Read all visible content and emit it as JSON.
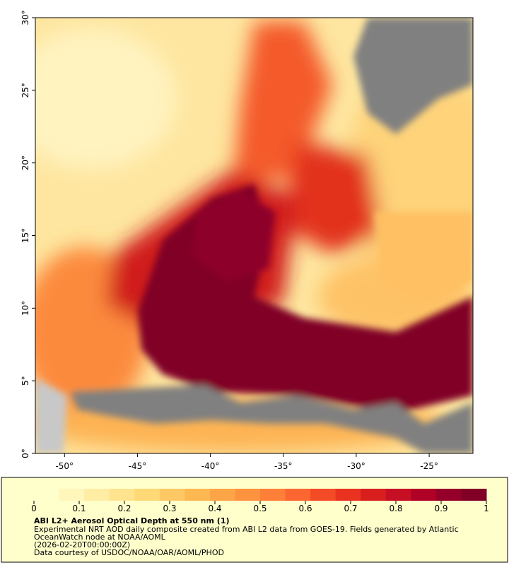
{
  "map": {
    "xlim": [
      -52,
      -22
    ],
    "ylim": [
      0,
      30
    ],
    "xticks": [
      {
        "value": -50,
        "label": "-50°"
      },
      {
        "value": -45,
        "label": "-45°"
      },
      {
        "value": -40,
        "label": "-40°"
      },
      {
        "value": -35,
        "label": "-35°"
      },
      {
        "value": -30,
        "label": "-30°"
      },
      {
        "value": -25,
        "label": "-25°"
      }
    ],
    "yticks": [
      {
        "value": 0,
        "label": "0°"
      },
      {
        "value": 5,
        "label": "5°"
      },
      {
        "value": 10,
        "label": "10°"
      },
      {
        "value": 15,
        "label": "15°"
      },
      {
        "value": 20,
        "label": "20°"
      },
      {
        "value": 25,
        "label": "25°"
      },
      {
        "value": 30,
        "label": "30°"
      }
    ]
  },
  "colorbar": {
    "lim": [
      0,
      1
    ],
    "ticks": [
      0,
      0.1,
      0.2,
      0.3,
      0.4,
      0.5,
      0.6,
      0.7,
      0.8,
      0.9,
      1
    ],
    "colors": [
      "#ffffcc",
      "#fff6bb",
      "#ffeda4",
      "#ffe38f",
      "#fed976",
      "#fec965",
      "#feb852",
      "#fda546",
      "#fd933f",
      "#fd7f38",
      "#fc6630",
      "#f44b27",
      "#e9321f",
      "#d91e1e",
      "#c60f23",
      "#b00026",
      "#94002a",
      "#800026"
    ]
  },
  "caption": {
    "title": "ABI L2+ Aerosol Optical Depth at 550 nm (1)",
    "lines": [
      "Experimental NRT AOD daily composite created from ABI L2 data from GOES-19. Fields generated by Atlantic",
      "OceanWatch node at NOAA/AOML",
      "(2026-02-20T00:00:00Z)",
      "Data courtesy of USDOC/NOAA/OAR/AOML/PHOD"
    ]
  }
}
